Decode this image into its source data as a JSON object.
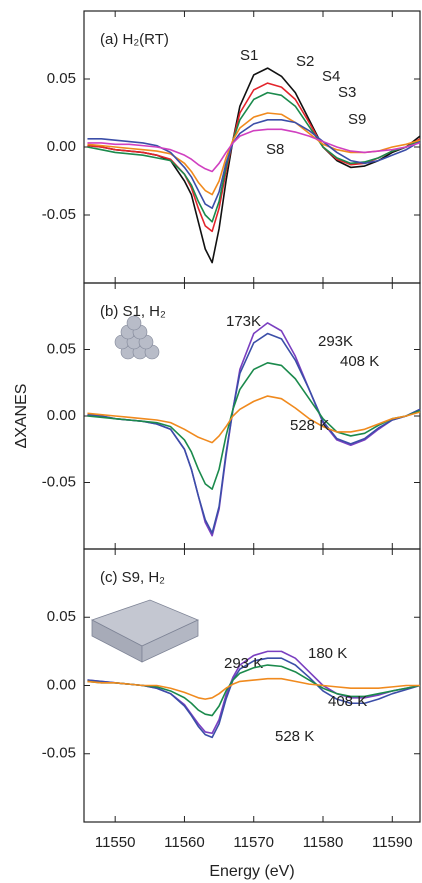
{
  "chart_data": [
    {
      "type": "line",
      "title": "(a)  H₂(RT)",
      "x": [
        11546,
        11548,
        11550,
        11552,
        11554,
        11556,
        11558,
        11560,
        11561,
        11562,
        11563,
        11564,
        11565,
        11566,
        11567,
        11568,
        11570,
        11572,
        11574,
        11576,
        11578,
        11580,
        11582,
        11584,
        11586,
        11588,
        11590,
        11592,
        11594
      ],
      "xlim": [
        11545.5,
        11594
      ],
      "xticks": [
        11550,
        11560,
        11570,
        11580,
        11590
      ],
      "ylim": [
        -0.1,
        0.1
      ],
      "yticks": [
        -0.05,
        {
          "value": 0,
          "label": "0.00"
        },
        0.05
      ],
      "series": [
        {
          "name": "S1",
          "color": "#111111",
          "values": [
            0.001,
            0.0,
            -0.002,
            -0.003,
            -0.004,
            -0.006,
            -0.01,
            -0.025,
            -0.035,
            -0.055,
            -0.075,
            -0.085,
            -0.06,
            -0.025,
            0.005,
            0.03,
            0.053,
            0.058,
            0.052,
            0.04,
            0.02,
            0.0,
            -0.01,
            -0.015,
            -0.014,
            -0.01,
            -0.004,
            0.0,
            0.008
          ]
        },
        {
          "name": "S2",
          "color": "#e3242b",
          "values": [
            0.001,
            0.0,
            -0.002,
            -0.003,
            -0.004,
            -0.006,
            -0.009,
            -0.02,
            -0.03,
            -0.045,
            -0.058,
            -0.062,
            -0.045,
            -0.018,
            0.005,
            0.025,
            0.042,
            0.047,
            0.044,
            0.035,
            0.018,
            0.0,
            -0.009,
            -0.013,
            -0.012,
            -0.008,
            -0.003,
            0.0,
            0.006
          ]
        },
        {
          "name": "S4",
          "color": "#1b8a4c",
          "values": [
            0.0,
            -0.002,
            -0.004,
            -0.005,
            -0.006,
            -0.008,
            -0.01,
            -0.02,
            -0.028,
            -0.04,
            -0.05,
            -0.055,
            -0.04,
            -0.015,
            0.005,
            0.02,
            0.035,
            0.04,
            0.038,
            0.03,
            0.015,
            0.0,
            -0.008,
            -0.012,
            -0.011,
            -0.008,
            -0.003,
            0.0,
            0.005
          ]
        },
        {
          "name": "S3",
          "color": "#f08a1e",
          "values": [
            0.002,
            0.001,
            0.0,
            -0.001,
            -0.002,
            -0.003,
            -0.005,
            -0.012,
            -0.018,
            -0.026,
            -0.032,
            -0.035,
            -0.025,
            -0.008,
            0.005,
            0.014,
            0.022,
            0.025,
            0.024,
            0.018,
            0.01,
            0.002,
            -0.002,
            -0.004,
            -0.004,
            -0.003,
            0.0,
            0.002,
            0.005
          ]
        },
        {
          "name": "S9",
          "color": "#3b4ea8",
          "values": [
            0.006,
            0.006,
            0.005,
            0.004,
            0.003,
            0.001,
            -0.004,
            -0.015,
            -0.022,
            -0.032,
            -0.042,
            -0.045,
            -0.033,
            -0.012,
            0.003,
            0.01,
            0.017,
            0.02,
            0.02,
            0.018,
            0.012,
            0.004,
            -0.004,
            -0.01,
            -0.012,
            -0.01,
            -0.006,
            -0.002,
            0.004
          ]
        },
        {
          "name": "S8",
          "color": "#d040c0",
          "values": [
            0.003,
            0.003,
            0.002,
            0.002,
            0.001,
            0.0,
            -0.002,
            -0.006,
            -0.009,
            -0.013,
            -0.016,
            -0.018,
            -0.012,
            -0.004,
            0.003,
            0.008,
            0.012,
            0.013,
            0.013,
            0.011,
            0.008,
            0.004,
            0.0,
            -0.003,
            -0.004,
            -0.003,
            -0.002,
            0.0,
            0.003
          ]
        }
      ]
    },
    {
      "type": "line",
      "title": "(b) S1, H₂",
      "y_label": "ΔXANES",
      "x": [
        11546,
        11548,
        11550,
        11552,
        11554,
        11556,
        11558,
        11560,
        11561,
        11562,
        11563,
        11564,
        11565,
        11566,
        11567,
        11568,
        11570,
        11572,
        11574,
        11576,
        11578,
        11580,
        11582,
        11584,
        11586,
        11588,
        11590,
        11592,
        11594
      ],
      "xlim": [
        11545.5,
        11594
      ],
      "xticks": [
        11550,
        11560,
        11570,
        11580,
        11590
      ],
      "ylim": [
        -0.1,
        0.1
      ],
      "yticks": [
        -0.05,
        {
          "value": 0,
          "label": "0.00"
        },
        0.05
      ],
      "series": [
        {
          "name": "173K",
          "color": "#7a3fc0",
          "values": [
            0.001,
            0.0,
            -0.002,
            -0.003,
            -0.004,
            -0.006,
            -0.01,
            -0.025,
            -0.04,
            -0.06,
            -0.08,
            -0.09,
            -0.07,
            -0.03,
            0.005,
            0.035,
            0.062,
            0.07,
            0.064,
            0.045,
            0.02,
            -0.005,
            -0.018,
            -0.022,
            -0.018,
            -0.01,
            -0.003,
            0.0,
            0.005
          ]
        },
        {
          "name": "293K",
          "color": "#3b4ea8",
          "values": [
            0.001,
            0.0,
            -0.002,
            -0.003,
            -0.004,
            -0.006,
            -0.01,
            -0.025,
            -0.04,
            -0.06,
            -0.078,
            -0.088,
            -0.068,
            -0.028,
            0.005,
            0.032,
            0.055,
            0.062,
            0.058,
            0.042,
            0.02,
            -0.004,
            -0.017,
            -0.021,
            -0.017,
            -0.009,
            -0.003,
            0.0,
            0.005
          ]
        },
        {
          "name": "408 K",
          "color": "#1b8a4c",
          "values": [
            0.0,
            -0.001,
            -0.002,
            -0.003,
            -0.004,
            -0.005,
            -0.008,
            -0.018,
            -0.027,
            -0.04,
            -0.051,
            -0.055,
            -0.04,
            -0.015,
            0.005,
            0.02,
            0.035,
            0.04,
            0.038,
            0.028,
            0.013,
            -0.002,
            -0.012,
            -0.015,
            -0.013,
            -0.007,
            -0.002,
            0.0,
            0.004
          ]
        },
        {
          "name": "528 K",
          "color": "#f08a1e",
          "values": [
            0.002,
            0.001,
            0.0,
            -0.001,
            -0.002,
            -0.003,
            -0.005,
            -0.01,
            -0.013,
            -0.016,
            -0.018,
            -0.02,
            -0.015,
            -0.008,
            0.0,
            0.005,
            0.011,
            0.015,
            0.013,
            0.006,
            -0.002,
            -0.008,
            -0.012,
            -0.012,
            -0.01,
            -0.006,
            -0.002,
            0.0,
            0.003
          ]
        }
      ]
    },
    {
      "type": "line",
      "title": "(c) S9, H₂",
      "x_label": "Energy (eV)",
      "x": [
        11546,
        11548,
        11550,
        11552,
        11554,
        11556,
        11558,
        11560,
        11561,
        11562,
        11563,
        11564,
        11565,
        11566,
        11567,
        11568,
        11570,
        11572,
        11574,
        11576,
        11578,
        11580,
        11582,
        11584,
        11586,
        11588,
        11590,
        11592,
        11594
      ],
      "xlim": [
        11545.5,
        11594
      ],
      "xticks": [
        11550,
        11560,
        11570,
        11580,
        11590
      ],
      "ylim": [
        -0.1,
        0.1
      ],
      "yticks": [
        -0.05,
        {
          "value": 0,
          "label": "0.00"
        },
        0.05
      ],
      "series": [
        {
          "name": "180 K",
          "color": "#7a3fc0",
          "values": [
            0.004,
            0.003,
            0.002,
            0.001,
            0.0,
            -0.002,
            -0.006,
            -0.014,
            -0.021,
            -0.028,
            -0.034,
            -0.035,
            -0.025,
            -0.007,
            0.006,
            0.015,
            0.022,
            0.025,
            0.025,
            0.02,
            0.01,
            0.0,
            -0.006,
            -0.009,
            -0.009,
            -0.007,
            -0.004,
            -0.002,
            0.0
          ]
        },
        {
          "name": "293 K",
          "color": "#3b4ea8",
          "values": [
            0.004,
            0.003,
            0.002,
            0.001,
            0.0,
            -0.002,
            -0.006,
            -0.015,
            -0.022,
            -0.03,
            -0.036,
            -0.038,
            -0.028,
            -0.01,
            0.004,
            0.012,
            0.018,
            0.02,
            0.02,
            0.015,
            0.006,
            -0.004,
            -0.01,
            -0.013,
            -0.013,
            -0.01,
            -0.006,
            -0.003,
            0.0
          ]
        },
        {
          "name": "408 K",
          "color": "#1b8a4c",
          "values": [
            0.003,
            0.002,
            0.002,
            0.001,
            0.0,
            -0.001,
            -0.004,
            -0.009,
            -0.013,
            -0.018,
            -0.021,
            -0.022,
            -0.015,
            -0.004,
            0.004,
            0.009,
            0.013,
            0.015,
            0.014,
            0.01,
            0.004,
            -0.002,
            -0.006,
            -0.008,
            -0.008,
            -0.006,
            -0.004,
            -0.002,
            0.0
          ]
        },
        {
          "name": "528 K",
          "color": "#f08a1e",
          "values": [
            0.003,
            0.002,
            0.002,
            0.001,
            0.0,
            0.0,
            -0.002,
            -0.005,
            -0.007,
            -0.009,
            -0.01,
            -0.009,
            -0.006,
            -0.002,
            0.001,
            0.003,
            0.004,
            0.005,
            0.005,
            0.003,
            0.001,
            0.0,
            -0.001,
            -0.002,
            -0.002,
            -0.002,
            -0.001,
            0.0,
            0.0
          ]
        }
      ]
    }
  ]
}
